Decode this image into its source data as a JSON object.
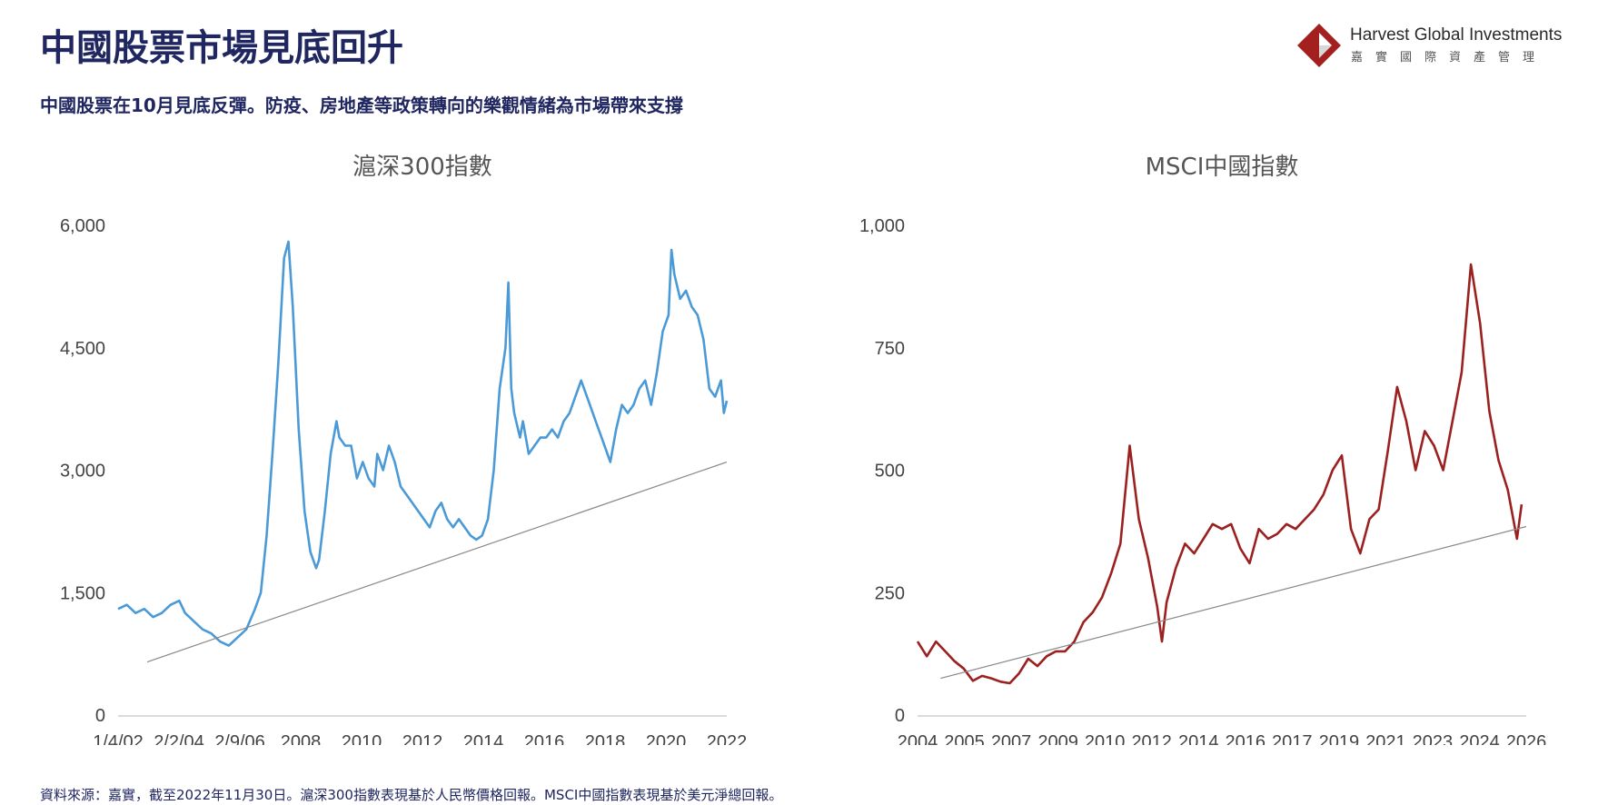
{
  "header": {
    "title": "中國股票市場見底回升",
    "subtitle": "中國股票在10月見底反彈。防疫、房地產等政策轉向的樂觀情緒為市場帶來支撐"
  },
  "logo": {
    "name": "Harvest Global Investments",
    "chinese": "嘉實國際資產管理"
  },
  "footnote": "資料來源：嘉實，截至2022年11月30日。滬深300指數表現基於人民幣價格回報。MSCI中國指數表現基於美元淨總回報。",
  "colors": {
    "csi300": "#4a9ad8",
    "msci": "#9b2020",
    "trend": "#888888",
    "heading": "#1f2660",
    "logo_red": "#a3201f"
  },
  "chart_data": [
    {
      "type": "line",
      "title": "滬深300指數",
      "xlabel": "",
      "ylabel": "",
      "ylim": [
        0,
        6000
      ],
      "yticks": [
        "0",
        "1,500",
        "3,000",
        "4,500",
        "6,000"
      ],
      "xticks": [
        "1/4/02",
        "2/2/04",
        "2/9/06",
        "2008",
        "2010",
        "2012",
        "2014",
        "2016",
        "2018",
        "2020",
        "2022"
      ],
      "xlim": [
        2002.0,
        2022.9
      ],
      "grid": false,
      "series": [
        {
          "color": "#4a9ad8",
          "x": [
            2002.0,
            2002.3,
            2002.6,
            2002.9,
            2003.2,
            2003.5,
            2003.8,
            2004.1,
            2004.3,
            2004.6,
            2004.9,
            2005.2,
            2005.5,
            2005.8,
            2006.1,
            2006.4,
            2006.7,
            2006.9,
            2007.1,
            2007.3,
            2007.5,
            2007.7,
            2007.85,
            2008.0,
            2008.2,
            2008.4,
            2008.6,
            2008.8,
            2008.9,
            2009.1,
            2009.3,
            2009.5,
            2009.6,
            2009.8,
            2010.0,
            2010.2,
            2010.4,
            2010.6,
            2010.8,
            2010.9,
            2011.1,
            2011.3,
            2011.5,
            2011.7,
            2011.9,
            2012.1,
            2012.3,
            2012.5,
            2012.7,
            2012.9,
            2013.1,
            2013.3,
            2013.5,
            2013.7,
            2013.9,
            2014.1,
            2014.3,
            2014.5,
            2014.7,
            2014.9,
            2015.1,
            2015.3,
            2015.4,
            2015.5,
            2015.6,
            2015.8,
            2015.9,
            2016.1,
            2016.3,
            2016.5,
            2016.7,
            2016.9,
            2017.1,
            2017.3,
            2017.5,
            2017.7,
            2017.9,
            2018.0,
            2018.2,
            2018.4,
            2018.6,
            2018.8,
            2018.9,
            2019.1,
            2019.3,
            2019.5,
            2019.7,
            2019.9,
            2020.1,
            2020.3,
            2020.5,
            2020.7,
            2020.9,
            2021.0,
            2021.1,
            2021.3,
            2021.5,
            2021.7,
            2021.9,
            2022.1,
            2022.3,
            2022.5,
            2022.7,
            2022.8,
            2022.9
          ],
          "y": [
            1300,
            1350,
            1250,
            1300,
            1200,
            1250,
            1350,
            1400,
            1250,
            1150,
            1050,
            1000,
            900,
            850,
            950,
            1050,
            1300,
            1500,
            2200,
            3200,
            4300,
            5600,
            5800,
            5000,
            3500,
            2500,
            2000,
            1800,
            1900,
            2500,
            3200,
            3600,
            3400,
            3300,
            3300,
            2900,
            3100,
            2900,
            2800,
            3200,
            3000,
            3300,
            3100,
            2800,
            2700,
            2600,
            2500,
            2400,
            2300,
            2500,
            2600,
            2400,
            2300,
            2400,
            2300,
            2200,
            2150,
            2200,
            2400,
            3000,
            4000,
            4500,
            5300,
            4000,
            3700,
            3400,
            3600,
            3200,
            3300,
            3400,
            3400,
            3500,
            3400,
            3600,
            3700,
            3900,
            4100,
            4000,
            3800,
            3600,
            3400,
            3200,
            3100,
            3500,
            3800,
            3700,
            3800,
            4000,
            4100,
            3800,
            4200,
            4700,
            4900,
            5700,
            5400,
            5100,
            5200,
            5000,
            4900,
            4600,
            4000,
            3900,
            4100,
            3700,
            3850
          ]
        }
      ],
      "trendline": {
        "x": [
          2003.0,
          2022.9
        ],
        "y": [
          650,
          3100
        ]
      }
    },
    {
      "type": "line",
      "title": "MSCI中國指數",
      "xlabel": "",
      "ylabel": "",
      "ylim": [
        0,
        1000
      ],
      "yticks": [
        "0",
        "250",
        "500",
        "750",
        "1,000"
      ],
      "xticks": [
        "2004",
        "2005",
        "2007",
        "2009",
        "2010",
        "2012",
        "2014",
        "2016",
        "2017",
        "2019",
        "2021",
        "2023",
        "2024",
        "2026"
      ],
      "xlim": [
        0.0,
        13.2
      ],
      "grid": false,
      "series": [
        {
          "color": "#9b2020",
          "x": [
            0.0,
            0.2,
            0.4,
            0.6,
            0.8,
            1.0,
            1.2,
            1.4,
            1.6,
            1.8,
            2.0,
            2.2,
            2.4,
            2.6,
            2.8,
            3.0,
            3.2,
            3.4,
            3.6,
            3.8,
            4.0,
            4.2,
            4.4,
            4.6,
            4.8,
            5.0,
            5.2,
            5.3,
            5.4,
            5.6,
            5.8,
            6.0,
            6.2,
            6.4,
            6.6,
            6.8,
            7.0,
            7.2,
            7.4,
            7.6,
            7.8,
            8.0,
            8.2,
            8.4,
            8.6,
            8.8,
            9.0,
            9.2,
            9.4,
            9.6,
            9.8,
            10.0,
            10.2,
            10.4,
            10.6,
            10.8,
            11.0,
            11.2,
            11.4,
            11.6,
            11.8,
            12.0,
            12.2,
            12.4,
            12.6,
            12.8,
            13.0,
            13.1
          ],
          "y": [
            150,
            120,
            150,
            130,
            110,
            95,
            70,
            80,
            75,
            68,
            65,
            85,
            115,
            100,
            120,
            130,
            130,
            150,
            190,
            210,
            240,
            290,
            350,
            550,
            400,
            320,
            220,
            150,
            230,
            300,
            350,
            330,
            360,
            390,
            380,
            390,
            340,
            310,
            380,
            360,
            370,
            390,
            380,
            400,
            420,
            450,
            500,
            530,
            380,
            330,
            400,
            420,
            540,
            670,
            600,
            500,
            580,
            550,
            500,
            600,
            700,
            920,
            800,
            620,
            520,
            460,
            360,
            430
          ]
        }
      ],
      "trendline": {
        "x": [
          0.5,
          13.2
        ],
        "y": [
          75,
          385
        ]
      }
    }
  ]
}
